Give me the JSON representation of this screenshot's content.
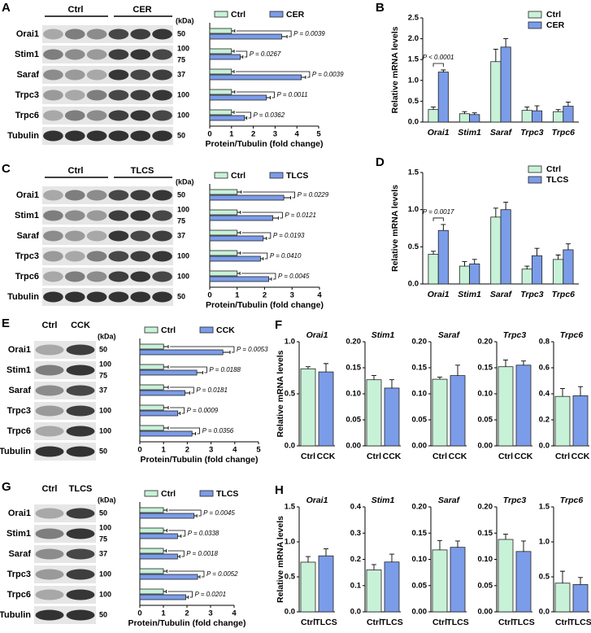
{
  "blots": [
    {
      "panel": "A",
      "groups": [
        "Ctrl",
        "CER"
      ],
      "unit": "(kDa)",
      "rows": [
        {
          "name": "Orai1",
          "kda": [
            50
          ]
        },
        {
          "name": "Stim1",
          "kda": [
            100,
            75
          ]
        },
        {
          "name": "Saraf",
          "kda": [
            37
          ]
        },
        {
          "name": "Trpc3",
          "kda": [
            100
          ]
        },
        {
          "name": "Trpc6",
          "kda": [
            100
          ]
        },
        {
          "name": "Tubulin",
          "kda": [
            50
          ]
        }
      ]
    },
    {
      "panel": "C",
      "groups": [
        "Ctrl",
        "TLCS"
      ],
      "unit": "(kDa)",
      "rows": [
        {
          "name": "Orai1",
          "kda": [
            50
          ]
        },
        {
          "name": "Stim1",
          "kda": [
            100,
            75
          ]
        },
        {
          "name": "Saraf",
          "kda": [
            37
          ]
        },
        {
          "name": "Trpc3",
          "kda": [
            100
          ]
        },
        {
          "name": "Trpc6",
          "kda": [
            100
          ]
        },
        {
          "name": "Tubulin",
          "kda": [
            50
          ]
        }
      ]
    },
    {
      "panel": "E",
      "groups": [
        "Ctrl",
        "CCK"
      ],
      "unit": "(kDa)",
      "rows": [
        {
          "name": "Orai1",
          "kda": [
            50
          ]
        },
        {
          "name": "Stim1",
          "kda": [
            100,
            75
          ]
        },
        {
          "name": "Saraf",
          "kda": [
            37
          ]
        },
        {
          "name": "Trpc3",
          "kda": [
            100
          ]
        },
        {
          "name": "Trpc6",
          "kda": [
            100
          ]
        },
        {
          "name": "Tubulin",
          "kda": [
            50
          ]
        }
      ]
    },
    {
      "panel": "G",
      "groups": [
        "Ctrl",
        "TLCS"
      ],
      "unit": "(kDa)",
      "rows": [
        {
          "name": "Orai1",
          "kda": [
            50
          ]
        },
        {
          "name": "Stim1",
          "kda": [
            100,
            75
          ]
        },
        {
          "name": "Saraf",
          "kda": [
            37
          ]
        },
        {
          "name": "Trpc3",
          "kda": [
            100
          ]
        },
        {
          "name": "Trpc6",
          "kda": [
            100
          ]
        },
        {
          "name": "Tubulin",
          "kda": [
            50
          ]
        }
      ]
    }
  ],
  "chart_data": [
    {
      "type": "hbar",
      "x_label": "Protein/Tubulin (fold change)",
      "xlim": [
        0,
        5
      ],
      "xticks": [
        0,
        1,
        2,
        3,
        4,
        5
      ],
      "series": [
        {
          "name": "Ctrl",
          "color": "#c8f2d8",
          "values": [
            1,
            1,
            1,
            1,
            1
          ],
          "errors": [
            0.15,
            0.12,
            0.12,
            0.15,
            0.12
          ]
        },
        {
          "name": "CER",
          "color": "#7b9ce8",
          "values": [
            3.3,
            1.4,
            4.2,
            2.6,
            1.6
          ],
          "errors": [
            0.25,
            0.12,
            0.2,
            0.18,
            0.1
          ]
        }
      ],
      "annotations": [
        "P = 0.0039",
        "P = 0.0267",
        "P = 0.0039",
        "P = 0.0011",
        "P = 0.0362"
      ]
    },
    {
      "type": "bar",
      "panel": "B",
      "y_label": "Relative mRNA levels",
      "categories": [
        "Orai1",
        "Stim1",
        "Saraf",
        "Trpc3",
        "Trpc6"
      ],
      "ylim": [
        0,
        2.5
      ],
      "yticks": [
        {
          "value": 0,
          "label": "0.0"
        },
        0.5,
        {
          "value": 1,
          "label": "1.0"
        },
        1.5,
        {
          "value": 2,
          "label": "2.0"
        },
        2.5
      ],
      "series": [
        {
          "name": "Ctrl",
          "color": "#c8f2d8",
          "values": [
            0.3,
            0.2,
            1.45,
            0.28,
            0.25
          ],
          "errors": [
            0.06,
            0.05,
            0.3,
            0.08,
            0.05
          ]
        },
        {
          "name": "CER",
          "color": "#7b9ce8",
          "values": [
            1.2,
            0.18,
            1.8,
            0.27,
            0.38
          ],
          "errors": [
            0.05,
            0.04,
            0.2,
            0.12,
            0.1
          ]
        }
      ],
      "annotations": [
        "P < 0.0001"
      ]
    },
    {
      "type": "hbar",
      "x_label": "Protein/Tubulin (fold change)",
      "xlim": [
        0,
        4
      ],
      "xticks": [
        0,
        1,
        2,
        3,
        4
      ],
      "series": [
        {
          "name": "Ctrl",
          "color": "#c8f2d8",
          "values": [
            1,
            1,
            1,
            1,
            1
          ],
          "errors": [
            0.15,
            0.12,
            0.12,
            0.12,
            0.1
          ]
        },
        {
          "name": "TLCS",
          "color": "#7b9ce8",
          "values": [
            2.7,
            2.3,
            1.95,
            1.85,
            2.15
          ],
          "errors": [
            0.25,
            0.2,
            0.12,
            0.1,
            0.1
          ]
        }
      ],
      "annotations": [
        "P = 0.0229",
        "P = 0.0121",
        "P = 0.0193",
        "P = 0.0410",
        "P = 0.0045"
      ]
    },
    {
      "type": "bar",
      "panel": "D",
      "y_label": "Relative mRNA levels",
      "categories": [
        "Orai1",
        "Stim1",
        "Saraf",
        "Trpc3",
        "Trpc6"
      ],
      "ylim": [
        0,
        1.5
      ],
      "yticks": [
        {
          "value": 0,
          "label": "0.0"
        },
        0.5,
        {
          "value": 1,
          "label": "1.0"
        },
        1.5
      ],
      "series": [
        {
          "name": "Ctrl",
          "color": "#c8f2d8",
          "values": [
            0.4,
            0.24,
            0.9,
            0.2,
            0.33
          ],
          "errors": [
            0.04,
            0.06,
            0.12,
            0.04,
            0.06
          ]
        },
        {
          "name": "TLCS",
          "color": "#7b9ce8",
          "values": [
            0.72,
            0.27,
            1.0,
            0.38,
            0.46
          ],
          "errors": [
            0.08,
            0.06,
            0.1,
            0.1,
            0.08
          ]
        }
      ],
      "annotations": [
        "P = 0.0017"
      ]
    },
    {
      "type": "hbar",
      "x_label": "Protein/Tubulin (fold change)",
      "xlim": [
        0,
        5
      ],
      "xticks": [
        0,
        1,
        2,
        3,
        4,
        5
      ],
      "series": [
        {
          "name": "Ctrl",
          "color": "#c8f2d8",
          "values": [
            1,
            1,
            1,
            1,
            1
          ],
          "errors": [
            0.2,
            0.2,
            0.2,
            0.2,
            0.2
          ]
        },
        {
          "name": "CCK",
          "color": "#7b9ce8",
          "values": [
            3.5,
            2.4,
            1.9,
            1.6,
            2.2
          ],
          "errors": [
            0.3,
            0.25,
            0.2,
            0.1,
            0.15
          ]
        }
      ],
      "annotations": [
        "P = 0.0053",
        "P = 0.0188",
        "P = 0.0181",
        "P = 0.0009",
        "P = 0.0356"
      ]
    },
    {
      "type": "small_bar",
      "panel": "F",
      "y_label": "Relative mRNA levels",
      "title": "Orai1",
      "categories": [
        "Ctrl",
        "CCK"
      ],
      "colors": [
        "#c8f2d8",
        "#7b9ce8"
      ],
      "values": [
        0.74,
        0.71
      ],
      "errors": [
        0.02,
        0.08
      ],
      "ylim": [
        0,
        1
      ],
      "yticks": [
        {
          "value": 0,
          "label": "0.0"
        },
        0.5,
        {
          "value": 1,
          "label": "1.0"
        }
      ]
    },
    {
      "type": "small_bar",
      "title": "Stim1",
      "categories": [
        "Ctrl",
        "CCK"
      ],
      "colors": [
        "#c8f2d8",
        "#7b9ce8"
      ],
      "values": [
        0.127,
        0.111
      ],
      "errors": [
        0.008,
        0.016
      ],
      "ylim": [
        0,
        0.2
      ],
      "yticks": [
        {
          "value": 0,
          "label": "0.00"
        },
        0.05,
        {
          "value": 0.1,
          "label": "0.10"
        },
        0.15,
        {
          "value": 0.2,
          "label": "0.20"
        }
      ]
    },
    {
      "type": "small_bar",
      "title": "Saraf",
      "categories": [
        "Ctrl",
        "CCK"
      ],
      "colors": [
        "#c8f2d8",
        "#7b9ce8"
      ],
      "values": [
        0.128,
        0.135
      ],
      "errors": [
        0.004,
        0.02
      ],
      "ylim": [
        0,
        0.2
      ],
      "yticks": [
        {
          "value": 0,
          "label": "0.00"
        },
        0.05,
        {
          "value": 0.1,
          "label": "0.10"
        },
        0.15,
        {
          "value": 0.2,
          "label": "0.20"
        }
      ]
    },
    {
      "type": "small_bar",
      "title": "Trpc3",
      "categories": [
        "Ctrl",
        "CCK"
      ],
      "colors": [
        "#c8f2d8",
        "#7b9ce8"
      ],
      "values": [
        0.152,
        0.155
      ],
      "errors": [
        0.013,
        0.008
      ],
      "ylim": [
        0,
        0.2
      ],
      "yticks": [
        {
          "value": 0,
          "label": "0.00"
        },
        0.05,
        {
          "value": 0.1,
          "label": "0.10"
        },
        0.15,
        {
          "value": 0.2,
          "label": "0.20"
        }
      ]
    },
    {
      "type": "small_bar",
      "title": "Trpc6",
      "categories": [
        "Ctrl",
        "CCK"
      ],
      "colors": [
        "#c8f2d8",
        "#7b9ce8"
      ],
      "values": [
        0.38,
        0.385
      ],
      "errors": [
        0.06,
        0.07
      ],
      "ylim": [
        0,
        0.8
      ],
      "yticks": [
        {
          "value": 0,
          "label": "0.0"
        },
        0.2,
        0.4,
        0.6,
        0.8
      ]
    },
    {
      "type": "hbar",
      "x_label": "Protein/Tubulin (fold change)",
      "xlim": [
        0,
        4
      ],
      "xticks": [
        0,
        1,
        2,
        3,
        4
      ],
      "series": [
        {
          "name": "Ctrl",
          "color": "#c8f2d8",
          "values": [
            1,
            1,
            1,
            1,
            1
          ],
          "errors": [
            0.15,
            0.15,
            0.12,
            0.15,
            0.12
          ]
        },
        {
          "name": "TLCS",
          "color": "#7b9ce8",
          "values": [
            2.3,
            1.6,
            1.6,
            2.45,
            1.95
          ],
          "errors": [
            0.12,
            0.15,
            0.1,
            0.1,
            0.1
          ]
        }
      ],
      "annotations": [
        "P = 0.0045",
        "P = 0.0338",
        "P = 0.0018",
        "P = 0.0052",
        "P = 0.0201"
      ]
    },
    {
      "type": "small_bar",
      "panel": "H",
      "y_label": "Relative mRNA levels",
      "title": "Orai1",
      "categories": [
        "Ctrl",
        "TLCS"
      ],
      "colors": [
        "#c8f2d8",
        "#7b9ce8"
      ],
      "values": [
        0.71,
        0.8
      ],
      "errors": [
        0.08,
        0.1
      ],
      "ylim": [
        0,
        1.5
      ],
      "yticks": [
        {
          "value": 0,
          "label": "0.0"
        },
        0.5,
        {
          "value": 1,
          "label": "1.0"
        },
        1.5
      ]
    },
    {
      "type": "small_bar",
      "title": "Stim1",
      "categories": [
        "Ctrl",
        "TLCS"
      ],
      "colors": [
        "#c8f2d8",
        "#7b9ce8"
      ],
      "values": [
        0.16,
        0.19
      ],
      "errors": [
        0.02,
        0.03
      ],
      "ylim": [
        0,
        0.4
      ],
      "yticks": [
        {
          "value": 0,
          "label": "0.0"
        },
        0.1,
        0.2,
        0.3,
        0.4
      ]
    },
    {
      "type": "small_bar",
      "title": "Saraf",
      "categories": [
        "Ctrl",
        "TLCS"
      ],
      "colors": [
        "#c8f2d8",
        "#7b9ce8"
      ],
      "values": [
        0.118,
        0.123
      ],
      "errors": [
        0.018,
        0.012
      ],
      "ylim": [
        0,
        0.2
      ],
      "yticks": [
        {
          "value": 0,
          "label": "0.00"
        },
        0.05,
        {
          "value": 0.1,
          "label": "0.10"
        },
        0.15,
        {
          "value": 0.2,
          "label": "0.20"
        }
      ]
    },
    {
      "type": "small_bar",
      "title": "Trpc3",
      "categories": [
        "Ctrl",
        "TLCS"
      ],
      "colors": [
        "#c8f2d8",
        "#7b9ce8"
      ],
      "values": [
        0.138,
        0.115
      ],
      "errors": [
        0.01,
        0.02
      ],
      "ylim": [
        0,
        0.2
      ],
      "yticks": [
        {
          "value": 0,
          "label": "0.00"
        },
        0.05,
        {
          "value": 0.1,
          "label": "0.10"
        },
        0.15,
        {
          "value": 0.2,
          "label": "0.20"
        }
      ]
    },
    {
      "type": "small_bar",
      "title": "Trpc6",
      "categories": [
        "Ctrl",
        "TLCS"
      ],
      "colors": [
        "#c8f2d8",
        "#7b9ce8"
      ],
      "values": [
        0.41,
        0.39
      ],
      "errors": [
        0.17,
        0.1
      ],
      "ylim": [
        0,
        1.5
      ],
      "yticks": [
        {
          "value": 0,
          "label": "0.0"
        },
        0.5,
        {
          "value": 1,
          "label": "1.0"
        },
        1.5
      ]
    }
  ]
}
